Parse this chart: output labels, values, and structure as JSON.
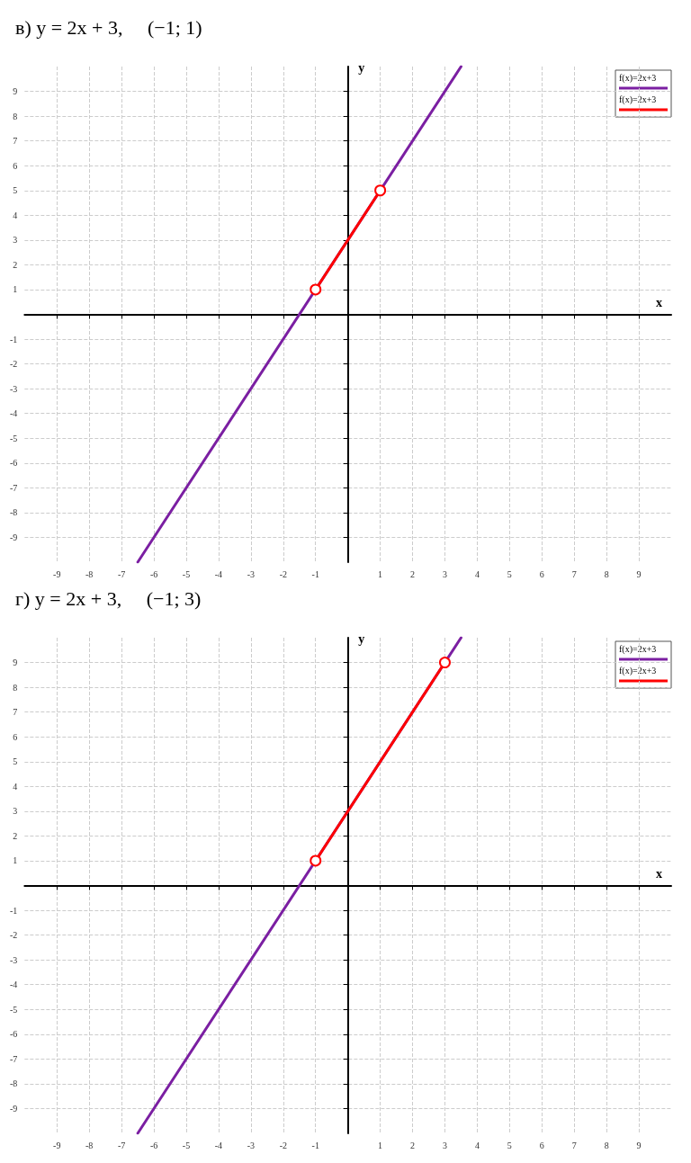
{
  "chart_data": [
    {
      "type": "line",
      "title": "в) y = 2x + 3,     (−1; 1)",
      "xlabel": "x",
      "ylabel": "y",
      "xlim": [
        -10,
        10
      ],
      "ylim": [
        -10,
        10
      ],
      "xticks": [
        -9,
        -8,
        -7,
        -6,
        -5,
        -4,
        -3,
        -2,
        -1,
        1,
        2,
        3,
        4,
        5,
        6,
        7,
        8,
        9
      ],
      "yticks": [
        -9,
        -8,
        -7,
        -6,
        -5,
        -4,
        -3,
        -2,
        -1,
        1,
        2,
        3,
        4,
        5,
        6,
        7,
        8,
        9
      ],
      "grid": true,
      "legend": "top right",
      "series": [
        {
          "name": "f(x)=2x+3",
          "color": "#7b1fa2",
          "x": [
            -6.5,
            3.5
          ],
          "values": [
            -10,
            10
          ],
          "marker": "none"
        },
        {
          "name": "f(x)=2x+3",
          "color": "#ff0000",
          "x": [
            -1,
            1
          ],
          "values": [
            1,
            5
          ],
          "marker": "circle"
        }
      ]
    },
    {
      "type": "line",
      "title": "г) y = 2x + 3,     (−1; 3)",
      "xlabel": "x",
      "ylabel": "y",
      "xlim": [
        -10,
        10
      ],
      "ylim": [
        -10,
        10
      ],
      "xticks": [
        -9,
        -8,
        -7,
        -6,
        -5,
        -4,
        -3,
        -2,
        -1,
        1,
        2,
        3,
        4,
        5,
        6,
        7,
        8,
        9
      ],
      "yticks": [
        -9,
        -8,
        -7,
        -6,
        -5,
        -4,
        -3,
        -2,
        -1,
        1,
        2,
        3,
        4,
        5,
        6,
        7,
        8,
        9
      ],
      "grid": true,
      "legend": "top right",
      "series": [
        {
          "name": "f(x)=2x+3",
          "color": "#7b1fa2",
          "x": [
            -6.5,
            3.5
          ],
          "values": [
            -10,
            10
          ],
          "marker": "none"
        },
        {
          "name": "f(x)=2x+3",
          "color": "#ff0000",
          "x": [
            -1,
            3
          ],
          "values": [
            1,
            9
          ],
          "marker": "circle"
        }
      ]
    }
  ]
}
